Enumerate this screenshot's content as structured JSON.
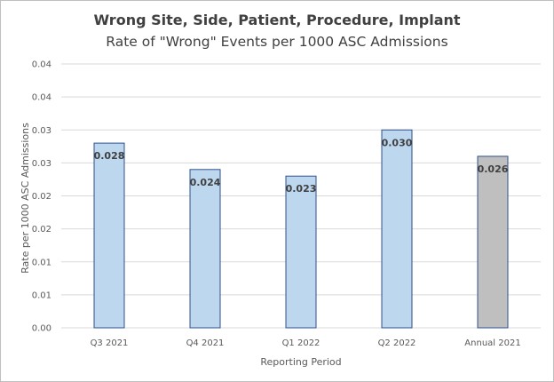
{
  "chart_data": {
    "type": "bar",
    "title": "Wrong Site, Side, Patient, Procedure, Implant",
    "subtitle": "Rate of \"Wrong\" Events per 1000 ASC Admissions",
    "xlabel": "Reporting Period",
    "ylabel": "Rate per 1000 ASC Admissions",
    "categories": [
      "Q3 2021",
      "Q4 2021",
      "Q1 2022",
      "Q2 2022",
      "Annual 2021"
    ],
    "values": [
      0.028,
      0.024,
      0.023,
      0.03,
      0.026
    ],
    "data_labels": [
      "0.028",
      "0.024",
      "0.023",
      "0.030",
      "0.026"
    ],
    "bar_colors": [
      "#bdd7ee",
      "#bdd7ee",
      "#bdd7ee",
      "#bdd7ee",
      "#bfbfbf"
    ],
    "bar_outline_colors": [
      "#2f4f8f",
      "#2f4f8f",
      "#2f4f8f",
      "#2f4f8f",
      "#2f4f8f"
    ],
    "y_tick_values": [
      0,
      0.005,
      0.01,
      0.015,
      0.02,
      0.025,
      0.03,
      0.035,
      0.04
    ],
    "y_tick_labels": [
      "0.00",
      "0.01",
      "0.01",
      "0.02",
      "0.02",
      "0.03",
      "0.03",
      "0.04",
      "0.04"
    ],
    "ylim": [
      0,
      0.04
    ],
    "grid": true,
    "legend": "none"
  }
}
